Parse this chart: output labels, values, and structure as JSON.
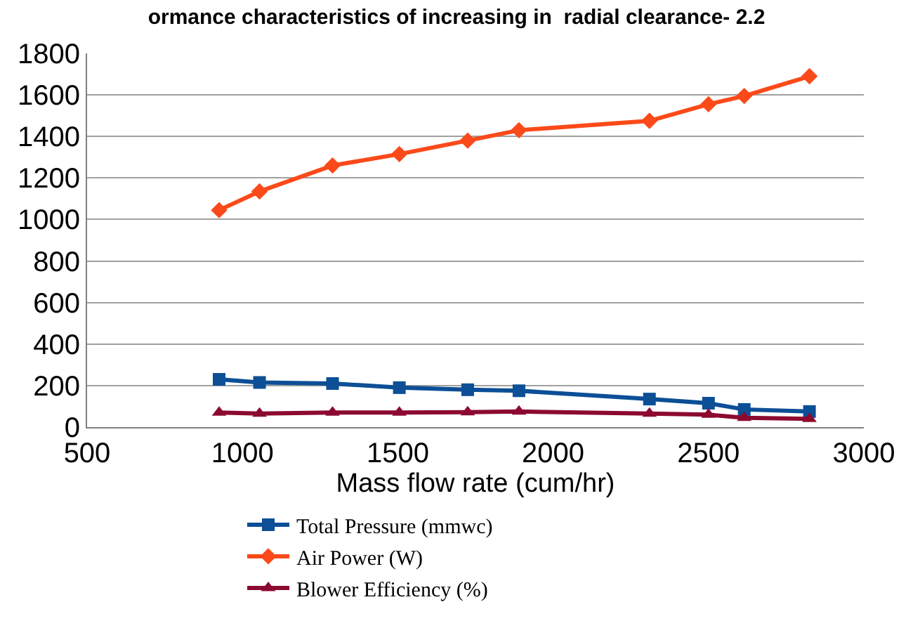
{
  "chart_data": {
    "type": "line",
    "title": "ormance characteristics of increasing in  radial clearance- 2.2",
    "xlabel": "Mass flow rate (cum/hr)",
    "x": [
      925,
      1055,
      1290,
      1505,
      1725,
      1890,
      2310,
      2500,
      2615,
      2825
    ],
    "series": [
      {
        "name": "Total Pressure (mmwc)",
        "color": "#0c4f96",
        "marker": "square",
        "values": [
          230,
          215,
          210,
          190,
          180,
          175,
          135,
          115,
          85,
          75
        ]
      },
      {
        "name": "Air Power (W)",
        "color": "#fb4a1a",
        "marker": "diamond",
        "values": [
          1045,
          1135,
          1260,
          1315,
          1380,
          1430,
          1475,
          1555,
          1595,
          1690
        ]
      },
      {
        "name": "Blower Efficiency (%)",
        "color": "#8c0a30",
        "marker": "triangle",
        "values": [
          70,
          65,
          70,
          70,
          72,
          75,
          65,
          60,
          45,
          40
        ]
      }
    ],
    "xlim": [
      500,
      3000
    ],
    "xticks": [
      500,
      1000,
      1500,
      2000,
      2500,
      3000
    ],
    "ylim": [
      0,
      1800
    ],
    "yticks": [
      0,
      200,
      400,
      600,
      800,
      1000,
      1200,
      1400,
      1600,
      1800
    ],
    "grid": "y",
    "legend": "bottom",
    "line_style": "solid"
  }
}
